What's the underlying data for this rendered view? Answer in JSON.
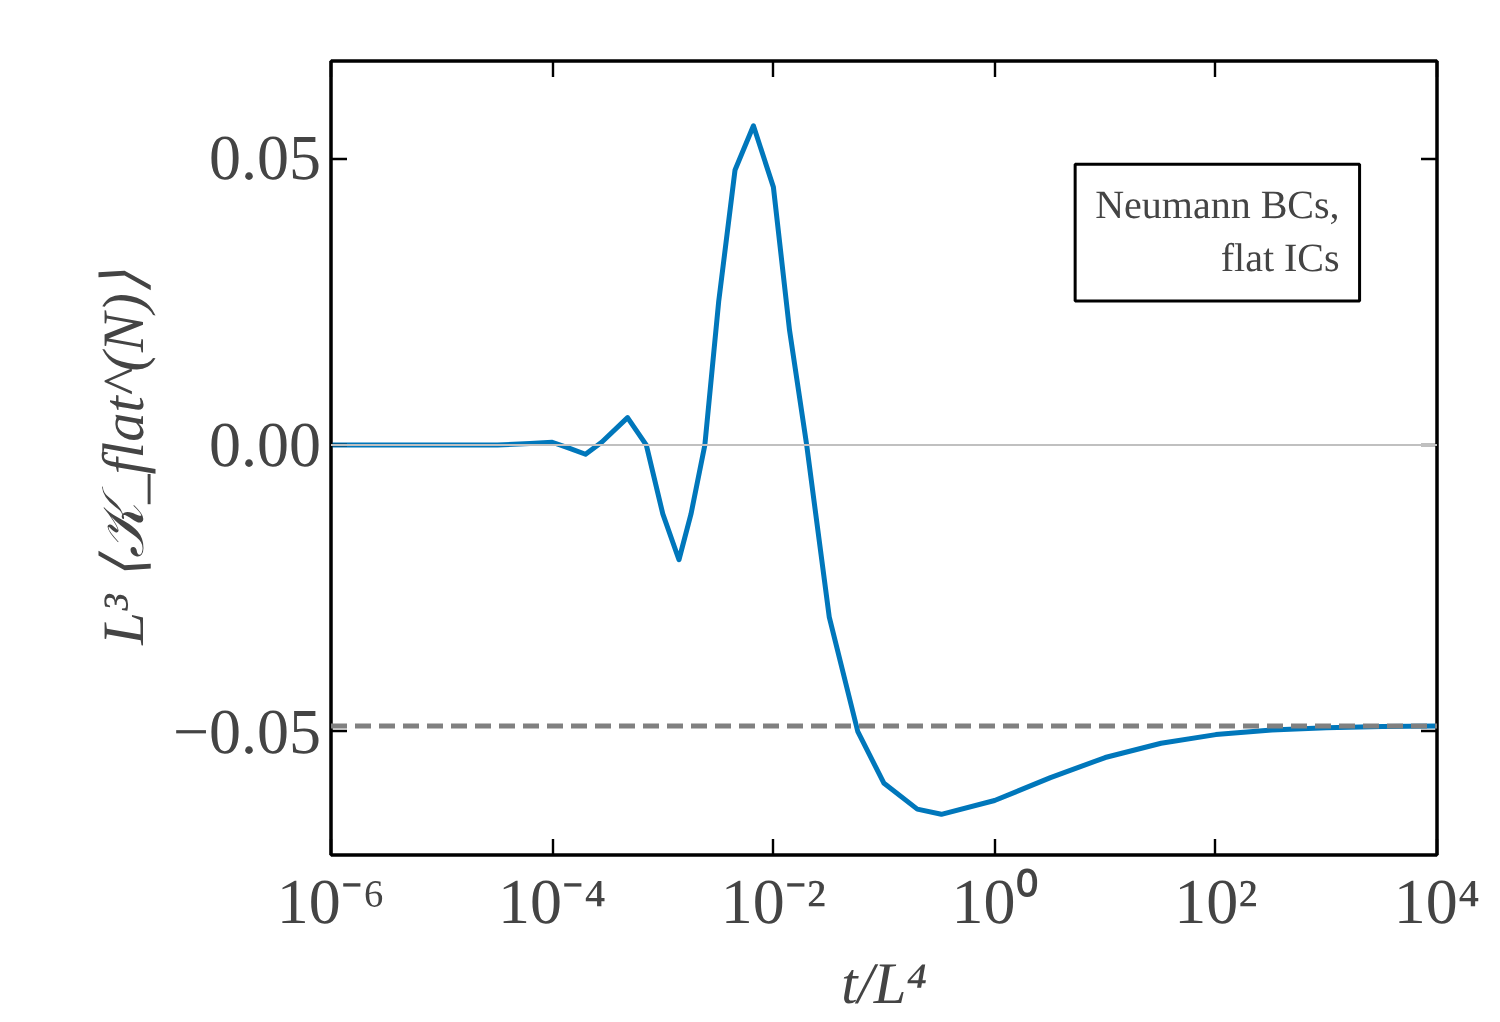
{
  "chart_data": {
    "type": "line",
    "xlabel": "t/L⁴",
    "ylabel": "L³ ⟨𝒦_flat^(N)⟩",
    "log": "x",
    "x": [
      1e-06,
      1e-05,
      3.2e-05,
      6.3e-05,
      0.0001,
      0.00014,
      0.0002,
      0.00028,
      0.00048,
      0.00071,
      0.001,
      0.0014,
      0.0018,
      0.0024,
      0.0032,
      0.0045,
      0.0066,
      0.01,
      0.014,
      0.02,
      0.032,
      0.058,
      0.1,
      0.2,
      0.33,
      1,
      3.2,
      10,
      32,
      100,
      320,
      1000,
      3200,
      10000
    ],
    "series": [
      {
        "color": "#0077bb",
        "values": [
          0,
          0,
          0,
          0.0003,
          0.0005,
          -0.0005,
          -0.0016,
          0.0005,
          0.0048,
          0.0,
          -0.012,
          -0.02,
          -0.012,
          0.0,
          0.025,
          0.048,
          0.0557,
          0.045,
          0.02,
          0.0,
          -0.03,
          -0.05,
          -0.059,
          -0.0635,
          -0.0644,
          -0.062,
          -0.058,
          -0.0545,
          -0.052,
          -0.0505,
          -0.0497,
          -0.0493,
          -0.0491,
          -0.049
        ]
      }
    ],
    "xlim": [
      1e-06,
      10000
    ],
    "ylim": [
      -0.0715,
      0.067
    ],
    "xticks": [
      {
        "value": 1e-06,
        "label": "10⁻⁶"
      },
      {
        "value": 0.0001,
        "label": "10⁻⁴"
      },
      {
        "value": 0.01,
        "label": "10⁻²"
      },
      {
        "value": 1,
        "label": "10⁰"
      },
      {
        "value": 100,
        "label": "10²"
      },
      {
        "value": 10000,
        "label": "10⁴"
      }
    ],
    "yticks": [
      {
        "value": -0.05,
        "label": "−0.05"
      },
      {
        "value": 0,
        "label": "0.00"
      },
      {
        "value": 0.05,
        "label": "0.05"
      }
    ],
    "ref_lines": [
      {
        "axis": "y",
        "value": 0,
        "color": "#c0c0c0",
        "line_style": "solid"
      },
      {
        "axis": "y",
        "value": -0.049,
        "color": "#808080",
        "line_style": "dashed"
      }
    ],
    "annotations": [
      "Neumann BCs,\nflat ICs"
    ],
    "grid": false,
    "line_style": "solid",
    "marker": "none"
  }
}
